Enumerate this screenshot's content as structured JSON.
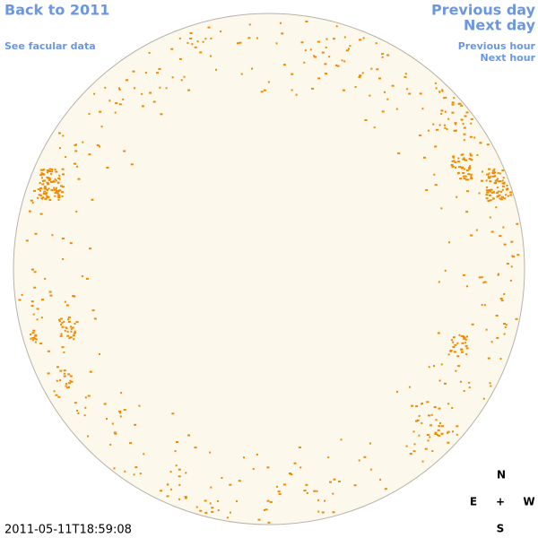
{
  "header": {
    "back_link": "Back to 2011",
    "previous_day": "Previous day",
    "next_day": "Next day",
    "facular_link": "See facular data",
    "previous_hour": "Previous hour",
    "next_hour": "Next hour"
  },
  "timestamp": "2011-05-11T18:59:08",
  "compass": {
    "north": "N",
    "east": "E",
    "center": "+",
    "west": "W",
    "south": "S"
  }
}
